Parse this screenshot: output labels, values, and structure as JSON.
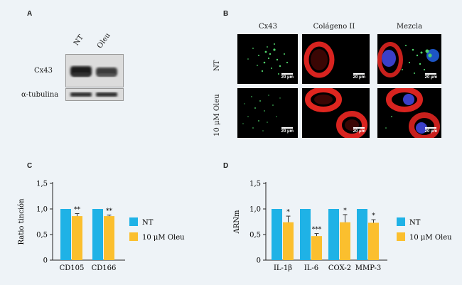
{
  "panels": {
    "a": {
      "letter": "A",
      "lanes": [
        "NT",
        "Oleu"
      ],
      "rows": [
        "Cx43",
        "α-tubulina"
      ]
    },
    "b": {
      "letter": "B",
      "columns": [
        "Cx43",
        "Colágeno II",
        "Mezcla"
      ],
      "rows": [
        "NT",
        "10 μM Oleu"
      ],
      "scale_label": "20 μm"
    },
    "c": {
      "letter": "C"
    },
    "d": {
      "letter": "D"
    }
  },
  "colors": {
    "nt": "#1fb2e6",
    "oleu": "#fbbf2e"
  },
  "chart_data": [
    {
      "type": "bar",
      "categories": [
        "CD105",
        "CD166"
      ],
      "series": [
        {
          "name": "NT",
          "values": [
            1.0,
            1.0
          ]
        },
        {
          "name": "10 μM Oleu",
          "values": [
            0.86,
            0.86
          ],
          "error": [
            0.05,
            0.02
          ]
        }
      ],
      "significance": [
        "**",
        "**"
      ],
      "ylabel": "Ratio tinción",
      "ylim": [
        0,
        1.5
      ],
      "yticks": [
        "0",
        "0,5",
        "1,0",
        "1,5"
      ],
      "legend": "right"
    },
    {
      "type": "bar",
      "categories": [
        "IL-1β",
        "IL-6",
        "COX-2",
        "MMP-3"
      ],
      "series": [
        {
          "name": "NT",
          "values": [
            1.0,
            1.0,
            1.0,
            1.0
          ]
        },
        {
          "name": "10 μM Oleu",
          "values": [
            0.74,
            0.47,
            0.74,
            0.73
          ],
          "error": [
            0.12,
            0.05,
            0.15,
            0.06
          ]
        }
      ],
      "significance": [
        "*",
        "***",
        "*",
        "*"
      ],
      "ylabel": "ARNm",
      "ylim": [
        0,
        1.5
      ],
      "yticks": [
        "0",
        "0,5",
        "1,0",
        "1,5"
      ],
      "legend": "right"
    }
  ]
}
